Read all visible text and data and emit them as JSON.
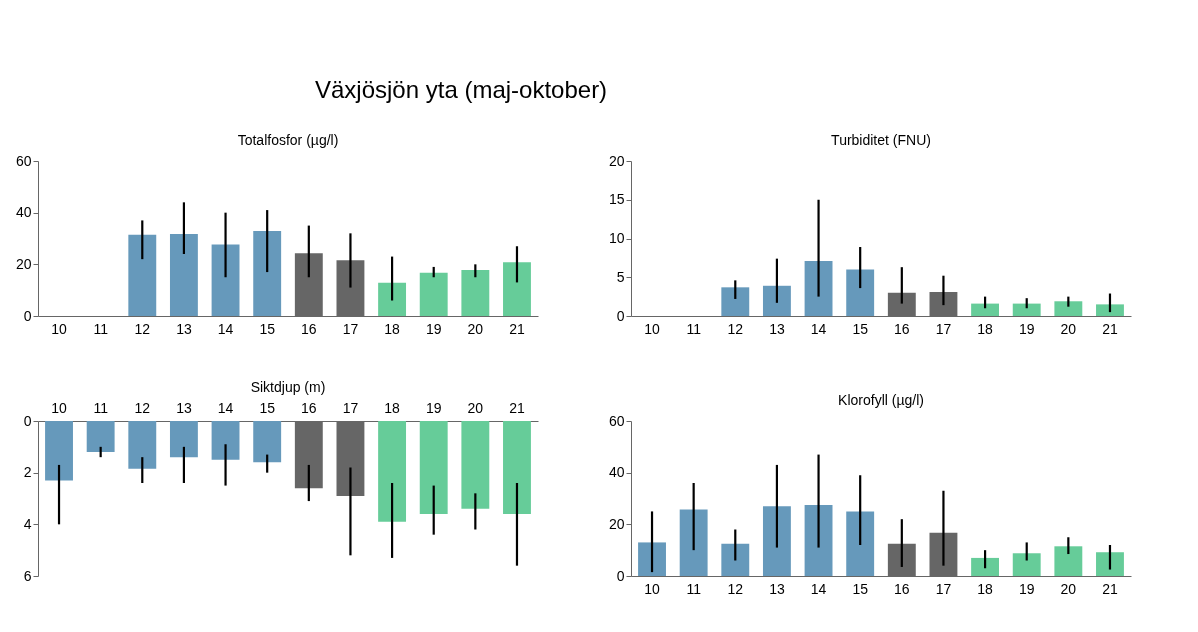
{
  "chart_data": [
    {
      "type": "bar",
      "title": "Totalfosfor (µg/l)",
      "annotations": [
        "Växjösjön yta (maj-oktober)"
      ],
      "categories": [
        "10",
        "11",
        "12",
        "13",
        "14",
        "15",
        "16",
        "17",
        "18",
        "19",
        "20",
        "21"
      ],
      "values": [
        null,
        null,
        31.5,
        31.7,
        27.7,
        32.9,
        24.3,
        21.6,
        12.9,
        16.7,
        17.8,
        20.8
      ],
      "errors": [
        null,
        null,
        [
          22,
          37
        ],
        [
          24,
          44
        ],
        [
          15,
          40
        ],
        [
          17,
          41
        ],
        [
          15,
          35
        ],
        [
          11,
          32
        ],
        [
          6,
          23
        ],
        [
          15,
          19
        ],
        [
          15,
          20
        ],
        [
          13,
          27
        ]
      ],
      "colors": [
        null,
        null,
        "#6699bb",
        "#6699bb",
        "#6699bb",
        "#6699bb",
        "#666666",
        "#666666",
        "#66cc99",
        "#66cc99",
        "#66cc99",
        "#66cc99"
      ],
      "ylim": [
        0,
        60
      ],
      "yticks": [
        0,
        20,
        40,
        60
      ],
      "grid": false
    },
    {
      "type": "bar",
      "title": "Turbiditet (FNU)",
      "categories": [
        "10",
        "11",
        "12",
        "13",
        "14",
        "15",
        "16",
        "17",
        "18",
        "19",
        "20",
        "21"
      ],
      "values": [
        null,
        null,
        3.7,
        3.9,
        7.1,
        6.0,
        3.0,
        3.1,
        1.6,
        1.6,
        1.9,
        1.5
      ],
      "errors": [
        null,
        null,
        [
          2.2,
          4.6
        ],
        [
          1.7,
          7.4
        ],
        [
          2.5,
          15
        ],
        [
          3.6,
          8.9
        ],
        [
          1.6,
          6.3
        ],
        [
          1.4,
          5.2
        ],
        [
          1.0,
          2.5
        ],
        [
          1.0,
          2.3
        ],
        [
          1.2,
          2.5
        ],
        [
          0.5,
          2.9
        ]
      ],
      "colors": [
        null,
        null,
        "#6699bb",
        "#6699bb",
        "#6699bb",
        "#6699bb",
        "#666666",
        "#666666",
        "#66cc99",
        "#66cc99",
        "#66cc99",
        "#66cc99"
      ],
      "ylim": [
        0,
        20
      ],
      "yticks": [
        0,
        5,
        10,
        15,
        20
      ],
      "grid": false
    },
    {
      "type": "bar",
      "title": "Siktdjup (m)",
      "categories": [
        "10",
        "11",
        "12",
        "13",
        "14",
        "15",
        "16",
        "17",
        "18",
        "19",
        "20",
        "21"
      ],
      "values": [
        2.3,
        1.2,
        1.85,
        1.4,
        1.5,
        1.6,
        2.6,
        2.9,
        3.9,
        3.6,
        3.4,
        3.6
      ],
      "errors": [
        [
          1.7,
          4.0
        ],
        [
          1.0,
          1.4
        ],
        [
          1.4,
          2.4
        ],
        [
          1.0,
          2.4
        ],
        [
          0.9,
          2.5
        ],
        [
          1.3,
          2.0
        ],
        [
          1.7,
          3.1
        ],
        [
          1.8,
          5.2
        ],
        [
          2.4,
          5.3
        ],
        [
          2.5,
          4.4
        ],
        [
          2.8,
          4.2
        ],
        [
          2.4,
          5.6
        ]
      ],
      "colors": [
        "#6699bb",
        "#6699bb",
        "#6699bb",
        "#6699bb",
        "#6699bb",
        "#6699bb",
        "#666666",
        "#666666",
        "#66cc99",
        "#66cc99",
        "#66cc99",
        "#66cc99"
      ],
      "ylim": [
        6,
        0
      ],
      "yticks": [
        0,
        2,
        4,
        6
      ],
      "grid": false
    },
    {
      "type": "bar",
      "title": "Klorofyll (µg/l)",
      "categories": [
        "10",
        "11",
        "12",
        "13",
        "14",
        "15",
        "16",
        "17",
        "18",
        "19",
        "20",
        "21"
      ],
      "values": [
        13,
        25.7,
        12.5,
        27,
        27.5,
        25,
        12.5,
        16.7,
        7,
        8.8,
        11.5,
        9.2
      ],
      "errors": [
        [
          1.5,
          25
        ],
        [
          10,
          36
        ],
        [
          6,
          18
        ],
        [
          11,
          43
        ],
        [
          11,
          47
        ],
        [
          12,
          39
        ],
        [
          3.5,
          22
        ],
        [
          4,
          33
        ],
        [
          3,
          10
        ],
        [
          6,
          13
        ],
        [
          8.5,
          15
        ],
        [
          2.5,
          12
        ]
      ],
      "colors": [
        "#6699bb",
        "#6699bb",
        "#6699bb",
        "#6699bb",
        "#6699bb",
        "#6699bb",
        "#666666",
        "#666666",
        "#66cc99",
        "#66cc99",
        "#66cc99",
        "#66cc99"
      ],
      "ylim": [
        0,
        60
      ],
      "yticks": [
        0,
        20,
        40,
        60
      ],
      "grid": false
    }
  ]
}
